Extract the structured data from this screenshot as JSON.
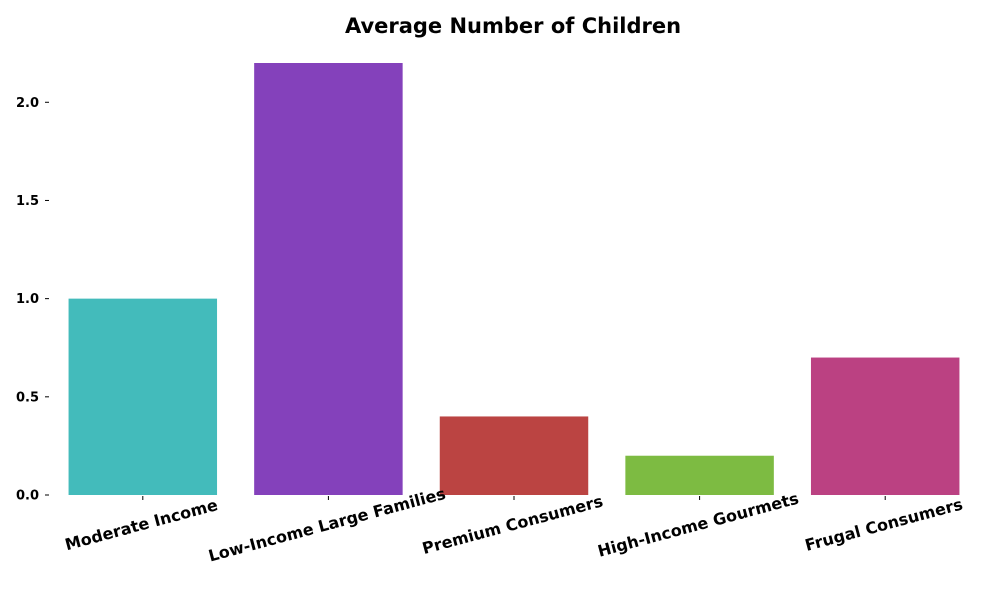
{
  "chart_data": {
    "type": "bar",
    "title": "Average Number of Children",
    "xlabel": "",
    "ylabel": "",
    "categories": [
      "Moderate Income",
      "Low-Income Large Families",
      "Premium Consumers",
      "High-Income Gourmets",
      "Frugal Consumers"
    ],
    "values": [
      1.0,
      2.2,
      0.4,
      0.2,
      0.7
    ],
    "colors": [
      "#43bbbb",
      "#8441bb",
      "#bb4442",
      "#7dbb42",
      "#bb4182"
    ],
    "ylim": [
      0,
      2.2
    ],
    "yticks": [
      {
        "value": 0.0,
        "label": "0.0"
      },
      {
        "value": 0.5,
        "label": "0.5"
      },
      {
        "value": 1.0,
        "label": "1.0"
      },
      {
        "value": 1.5,
        "label": "1.5"
      },
      {
        "value": 2.0,
        "label": "2.0"
      }
    ],
    "grid": false,
    "legend": "none",
    "x_tick_rotation_deg": 15
  }
}
